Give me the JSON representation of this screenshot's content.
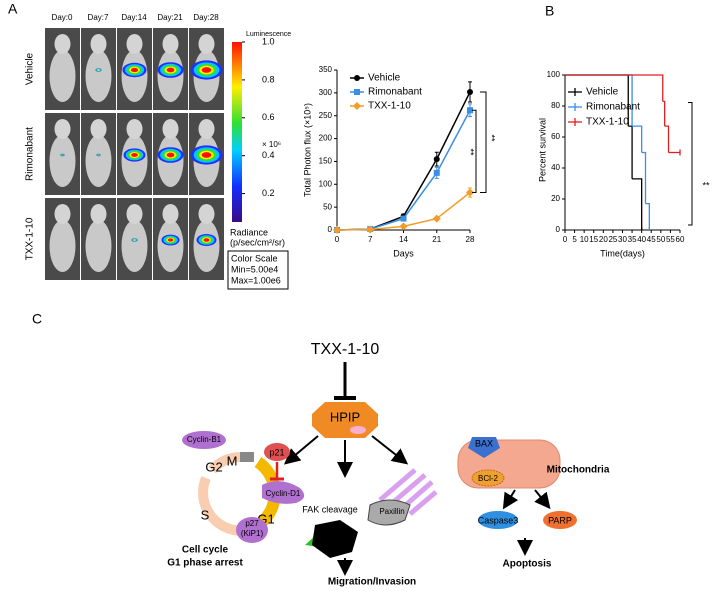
{
  "panel_labels": [
    "A",
    "B",
    "C"
  ],
  "imaging": {
    "days": [
      "Day:0",
      "Day:7",
      "Day:14",
      "Day:21",
      "Day:28"
    ],
    "groups": [
      "Vehicle",
      "Rimonabant",
      "TXX-1-10"
    ],
    "colorbar": {
      "title": "Luminescence",
      "clim": [
        0.05,
        1
      ],
      "ticks": [
        {
          "value": 1,
          "label": "1.0"
        },
        0.8,
        0.6,
        0.4,
        0.2
      ],
      "multiplier": "× 10⁶",
      "unit_line1": "Radiance",
      "unit_line2": "(p/sec/cm²/sr)",
      "scale_title": "Color Scale",
      "min_label": "Min=5.00e4",
      "max_label": "Max=1.00e6"
    }
  },
  "chart_data": [
    {
      "type": "line",
      "xlabel": "Days",
      "ylabel": "Total Photon flux (×10⁵)",
      "x": [
        0,
        7,
        14,
        21,
        28
      ],
      "xlim": [
        0,
        28
      ],
      "xticks": [
        0,
        7,
        14,
        21,
        28
      ],
      "ylim": [
        0,
        350
      ],
      "yticks": [
        0,
        50,
        100,
        150,
        200,
        250,
        300,
        350
      ],
      "series": [
        {
          "name": "Vehicle",
          "color": "#000000",
          "marker": "circle",
          "values": [
            0,
            2,
            30,
            155,
            302
          ],
          "errors": [
            0,
            1,
            5,
            15,
            22
          ]
        },
        {
          "name": "Rimonabant",
          "color": "#3a8ee6",
          "marker": "square",
          "values": [
            0,
            2,
            25,
            125,
            262
          ],
          "errors": [
            0,
            1,
            4,
            12,
            14
          ]
        },
        {
          "name": "TXX-1-10",
          "color": "#f39c26",
          "marker": "diamond",
          "values": [
            0,
            1,
            8,
            25,
            82
          ],
          "errors": [
            0,
            1,
            2,
            4,
            10
          ]
        }
      ],
      "annotations": [
        "**",
        "**"
      ]
    },
    {
      "type": "step",
      "xlabel": "Time(days)",
      "ylabel": "Percent survival",
      "xlim": [
        0,
        60
      ],
      "xticks": [
        0,
        5,
        10,
        15,
        20,
        25,
        30,
        35,
        40,
        45,
        50,
        55,
        60
      ],
      "ylim": [
        0,
        100
      ],
      "yticks": [
        0,
        20,
        40,
        60,
        80,
        100
      ],
      "series": [
        {
          "name": "Vehicle",
          "color": "#000000",
          "x": [
            0,
            33,
            35,
            40
          ],
          "values": [
            100,
            67,
            33,
            0
          ]
        },
        {
          "name": "Rimonabant",
          "color": "#3a8ee6",
          "x": [
            0,
            35,
            40,
            42,
            44
          ],
          "values": [
            100,
            67,
            50,
            17,
            0
          ]
        },
        {
          "name": "TXX-1-10",
          "color": "#e02020",
          "x": [
            0,
            51,
            52,
            54,
            60
          ],
          "values": [
            100,
            83,
            67,
            50,
            50
          ]
        }
      ],
      "annotations": [
        "**"
      ]
    }
  ],
  "diagram": {
    "drug": "TXX-1-10",
    "target": "HPIP",
    "cyclin_b1": "Cyclin-B1",
    "g2": "G2",
    "m": "M",
    "s": "S",
    "g1": "G1",
    "p21": "p21",
    "cyclin_d1": "Cyclin-D1",
    "p27": "p27",
    "kip1": "(KiP1)",
    "cell_cycle": "Cell cycle",
    "arrest": "G1 phase arrest",
    "fak": "FAK cleavage",
    "paxillin": "Paxillin",
    "migration": "Migration/Invasion",
    "bax": "BAX",
    "mito": "Mitochondria",
    "bcl2": "BCl-2",
    "caspase": "Caspase3",
    "parp": "PARP",
    "apoptosis": "Apoptosis"
  }
}
